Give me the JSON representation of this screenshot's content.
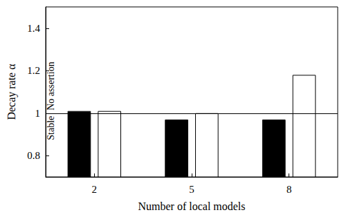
{
  "chart_data": {
    "type": "bar",
    "x_label": "Number of local models",
    "y_label": "Decay rate α",
    "categories": [
      "2",
      "5",
      "8"
    ],
    "series": [
      {
        "color": "#000000",
        "values": [
          1.01,
          0.97,
          0.97
        ]
      },
      {
        "color": "#ffffff",
        "values": [
          1.01,
          1.0,
          1.18
        ]
      }
    ],
    "ylim": [
      0.7,
      1.5
    ],
    "yticks": [
      0.8,
      1,
      1.2,
      1.4
    ],
    "reference_line": 1,
    "annotations": {
      "below": "Stable",
      "above": "No assertion"
    },
    "grid": false
  }
}
